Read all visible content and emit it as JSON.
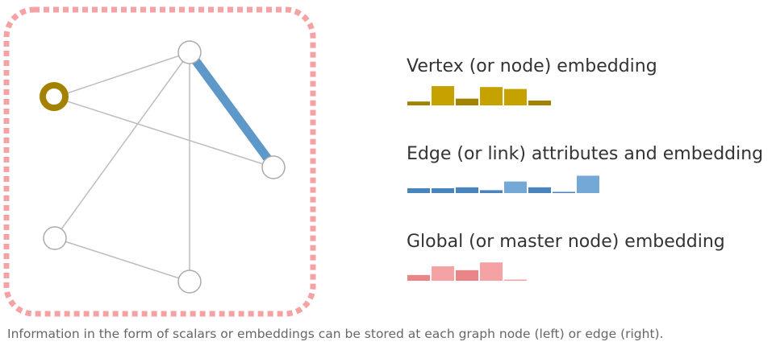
{
  "legend": [
    {
      "id": "vertex",
      "title": "Vertex (or node) embedding",
      "colors": {
        "light": "#c5a200",
        "dark": "#a28200"
      },
      "bars": [
        {
          "h": 0.2,
          "tone": "dark"
        },
        {
          "h": 1.0,
          "tone": "light"
        },
        {
          "h": 0.35,
          "tone": "dark"
        },
        {
          "h": 0.95,
          "tone": "light"
        },
        {
          "h": 0.85,
          "tone": "light"
        },
        {
          "h": 0.25,
          "tone": "dark"
        }
      ]
    },
    {
      "id": "edge",
      "title": "Edge (or link) attributes and embedding",
      "colors": {
        "light": "#74a8d6",
        "dark": "#4a84bd"
      },
      "bars": [
        {
          "h": 0.25,
          "tone": "dark"
        },
        {
          "h": 0.25,
          "tone": "dark"
        },
        {
          "h": 0.3,
          "tone": "dark"
        },
        {
          "h": 0.15,
          "tone": "dark"
        },
        {
          "h": 0.6,
          "tone": "light"
        },
        {
          "h": 0.3,
          "tone": "dark"
        },
        {
          "h": 0.05,
          "tone": "dark"
        },
        {
          "h": 0.9,
          "tone": "light"
        }
      ]
    },
    {
      "id": "global",
      "title": "Global (or master node) embedding",
      "colors": {
        "light": "#f4a2a4",
        "dark": "#e98587"
      },
      "bars": [
        {
          "h": 0.3,
          "tone": "dark"
        },
        {
          "h": 0.75,
          "tone": "light"
        },
        {
          "h": 0.55,
          "tone": "dark"
        },
        {
          "h": 0.95,
          "tone": "light"
        },
        {
          "h": 0.05,
          "tone": "light"
        }
      ]
    }
  ],
  "caption": "Information in the form of scalars or embeddings can be stored at each graph node (left) or edge (right).",
  "graph_colors": {
    "frame": "#f4a2a4",
    "edge": "#bdbdbd",
    "highlight_edge": "#5e98c8",
    "highlight_node": "#a28200",
    "node_stroke": "#aaaaaa"
  }
}
